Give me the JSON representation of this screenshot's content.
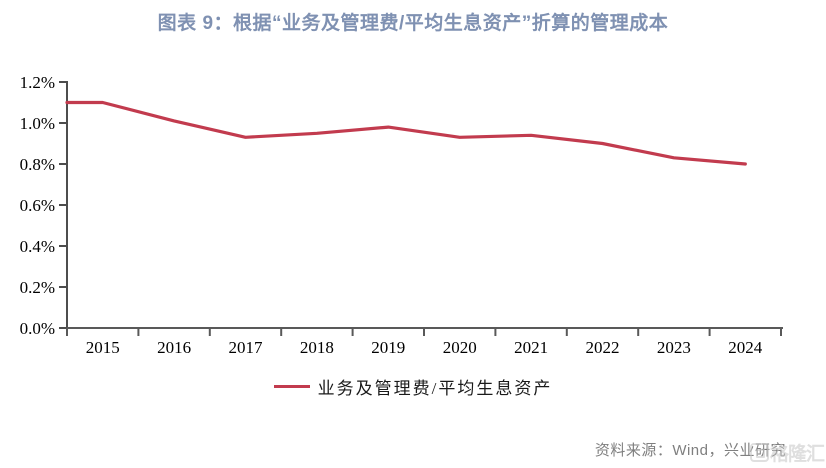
{
  "title": "图表 9：根据“业务及管理费/平均生息资产”折算的管理成本",
  "chart_data": {
    "type": "line",
    "categories": [
      "2015",
      "2016",
      "2017",
      "2018",
      "2019",
      "2020",
      "2021",
      "2022",
      "2023",
      "2024"
    ],
    "series": [
      {
        "name": "业务及管理费/平均生息资产",
        "values": [
          1.1,
          1.01,
          0.93,
          0.95,
          0.98,
          0.93,
          0.94,
          0.9,
          0.83,
          0.8
        ],
        "left_edge_value": 1.1,
        "color": "#C23B4E"
      }
    ],
    "title": "图表 9：根据“业务及管理费/平均生息资产”折算的管理成本",
    "xlabel": "",
    "ylabel": "",
    "ylim": [
      0,
      1.2
    ],
    "y_ticks": [
      "1.2%",
      "1.0%",
      "0.8%",
      "0.6%",
      "0.4%",
      "0.2%",
      "0.0%"
    ],
    "grid": false,
    "legend_position": "bottom"
  },
  "footer": {
    "source": "资料来源：Wind，兴业研究",
    "watermark": "格隆汇"
  },
  "colors": {
    "title": "#7F91B2",
    "line": "#C23B4E",
    "axis": "#595959",
    "source_text": "#7f7f7f"
  }
}
